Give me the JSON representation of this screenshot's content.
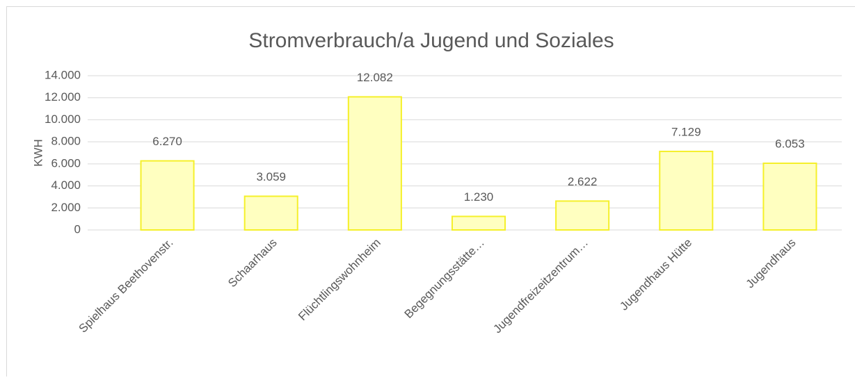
{
  "chart_data": {
    "type": "bar",
    "title": "Stromverbrauch/a Jugend und Soziales",
    "y_label": "KWH",
    "categories": [
      "Spielhaus Beethovenstr.",
      "Schaarhaus",
      "Flüchtlingswohnheim",
      "Begegnungsstätte…",
      "Jugendfreizeitzentrum…",
      "Jugendhaus Hütte",
      "Jugendhaus"
    ],
    "values": [
      6270,
      3059,
      12082,
      1230,
      2622,
      7129,
      6053
    ],
    "value_labels": [
      "6.270",
      "3.059",
      "12.082",
      "1.230",
      "2.622",
      "7.129",
      "6.053"
    ],
    "color": "#ffffc0",
    "edge_color": "#f5f02a",
    "ylim": [
      0,
      14000
    ],
    "yticks": [
      {
        "value": 0,
        "label": "0"
      },
      {
        "value": 2000,
        "label": "2.000"
      },
      {
        "value": 4000,
        "label": "4.000"
      },
      {
        "value": 6000,
        "label": "6.000"
      },
      {
        "value": 8000,
        "label": "8.000"
      },
      {
        "value": 10000,
        "label": "10.000"
      },
      {
        "value": 12000,
        "label": "12.000"
      },
      {
        "value": 14000,
        "label": "14.000"
      }
    ],
    "grid": true
  }
}
